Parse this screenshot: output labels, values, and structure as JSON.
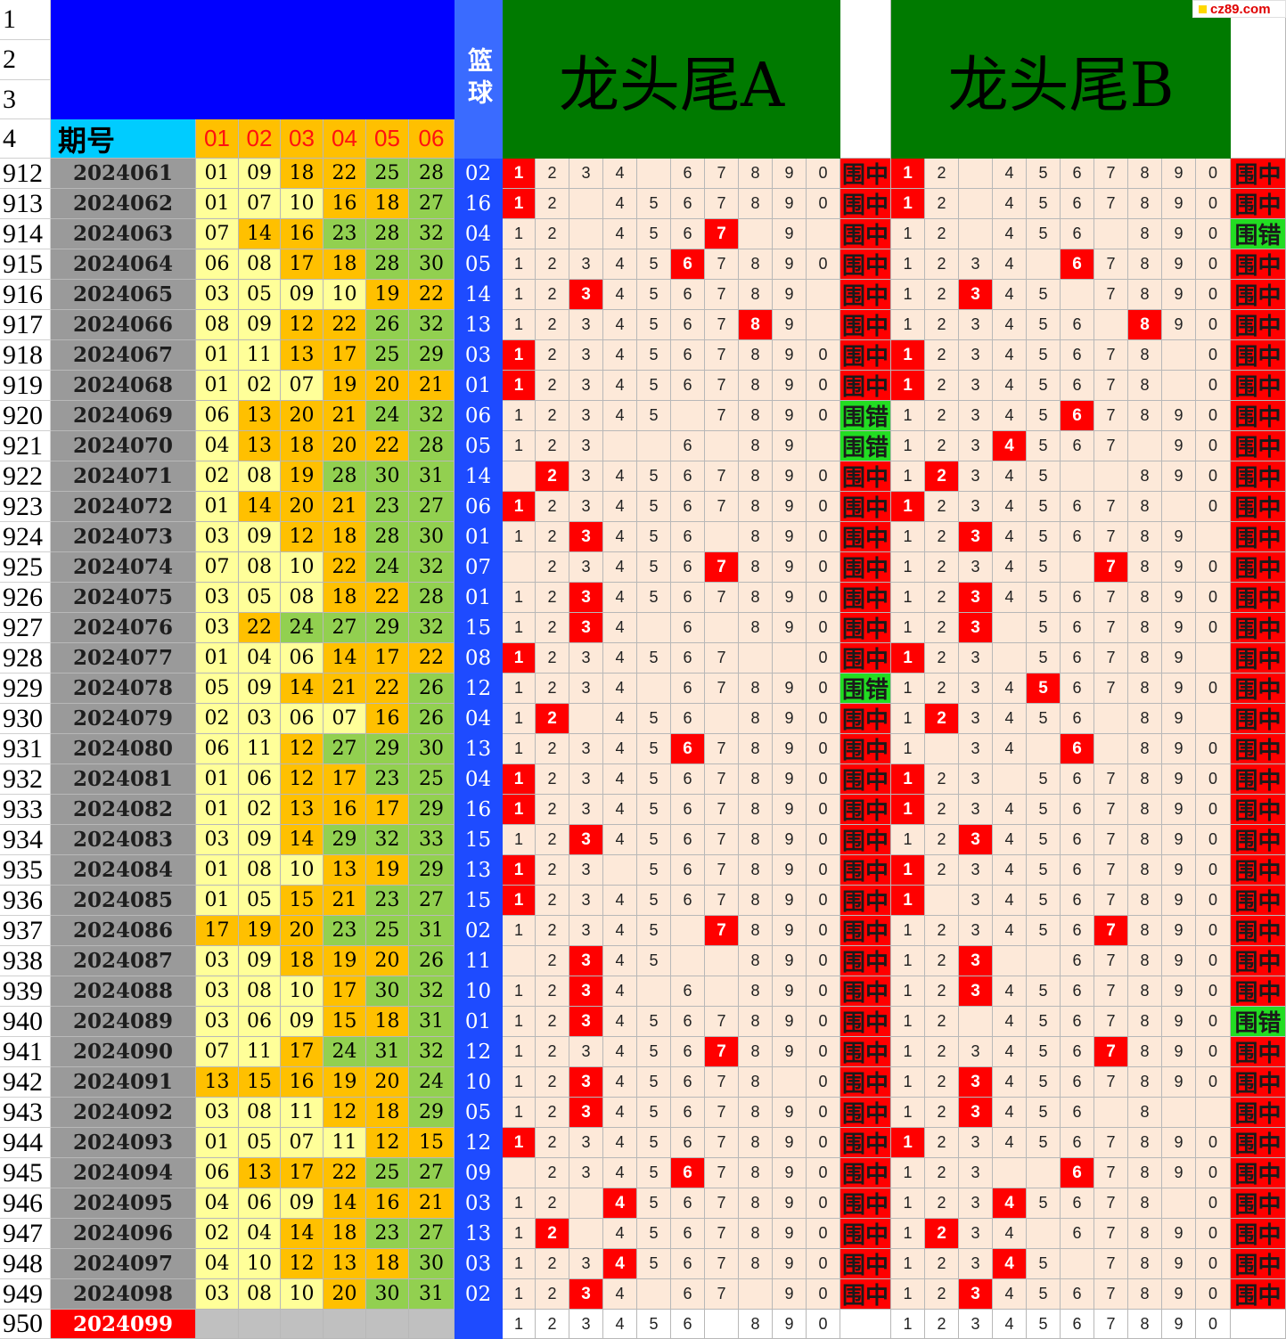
{
  "header": {
    "period_label": "期号",
    "ball_labels": [
      "01",
      "02",
      "03",
      "04",
      "05",
      "06"
    ],
    "blue_label": "篮球",
    "title_a": "龙头尾A",
    "title_b": "龙头尾B",
    "top_row_numbers": [
      "1",
      "2",
      "3",
      "4"
    ]
  },
  "watermark": "cz89.com",
  "colors": {
    "blue_block": "#0000ff",
    "blue_column": "#1e4bff",
    "header_green": "#007a00",
    "period_header": "#00ccff",
    "hit_red": "#ff0000",
    "miss_green": "#22dd22",
    "digit_bg": "#fde9d9",
    "ball_light": "#ffff99",
    "ball_mid": "#ffc000",
    "ball_dark": "#92d050"
  },
  "rows": [
    {
      "n": "912",
      "p": "2024061",
      "b": [
        "01",
        "09",
        "18",
        "22",
        "25",
        "28"
      ],
      "blue": "02",
      "a": "1234_67890",
      "ah": [
        0
      ],
      "ar": "围中",
      "bd": "12_4567890_",
      "bh": [
        0
      ],
      "br": "围中"
    },
    {
      "n": "913",
      "p": "2024062",
      "b": [
        "01",
        "07",
        "10",
        "16",
        "18",
        "27"
      ],
      "blue": "16",
      "a": "12_4567890",
      "ah": [
        0
      ],
      "ar": "围中",
      "bd": "12_4567890",
      "bh": [
        0
      ],
      "br": "围中"
    },
    {
      "n": "914",
      "p": "2024063",
      "b": [
        "07",
        "14",
        "16",
        "23",
        "28",
        "32"
      ],
      "blue": "04",
      "a": "12_4567_9_",
      "ah": [
        6
      ],
      "ar": "围中",
      "bd": "12_456_890",
      "bh": [],
      "br": "围错"
    },
    {
      "n": "915",
      "p": "2024064",
      "b": [
        "06",
        "08",
        "17",
        "18",
        "28",
        "30"
      ],
      "blue": "05",
      "a": "1234567890",
      "ah": [
        5
      ],
      "ar": "围中",
      "bd": "1234_67890",
      "bh": [
        5
      ],
      "br": "围中"
    },
    {
      "n": "916",
      "p": "2024065",
      "b": [
        "03",
        "05",
        "09",
        "10",
        "19",
        "22"
      ],
      "blue": "14",
      "a": "123456789_",
      "ah": [
        2
      ],
      "ar": "围中",
      "bd": "12345_7890",
      "bh": [
        2
      ],
      "br": "围中"
    },
    {
      "n": "917",
      "p": "2024066",
      "b": [
        "08",
        "09",
        "12",
        "22",
        "26",
        "32"
      ],
      "blue": "13",
      "a": "123456789_",
      "ah": [
        7
      ],
      "ar": "围中",
      "bd": "123456_890",
      "bh": [
        7
      ],
      "br": "围中"
    },
    {
      "n": "918",
      "p": "2024067",
      "b": [
        "01",
        "11",
        "13",
        "17",
        "25",
        "29"
      ],
      "blue": "03",
      "a": "1234567890",
      "ah": [
        0
      ],
      "ar": "围中",
      "bd": "12345678_0",
      "bh": [
        0
      ],
      "br": "围中"
    },
    {
      "n": "919",
      "p": "2024068",
      "b": [
        "01",
        "02",
        "07",
        "19",
        "20",
        "21"
      ],
      "blue": "01",
      "a": "1234567890",
      "ah": [
        0
      ],
      "ar": "围中",
      "bd": "12345678_0",
      "bh": [
        0
      ],
      "br": "围中"
    },
    {
      "n": "920",
      "p": "2024069",
      "b": [
        "06",
        "13",
        "20",
        "21",
        "24",
        "32"
      ],
      "blue": "06",
      "a": "12345_7890",
      "ah": [],
      "ar": "围错",
      "bd": "1234567890",
      "bh": [
        5
      ],
      "br": "围中"
    },
    {
      "n": "921",
      "p": "2024070",
      "b": [
        "04",
        "13",
        "18",
        "20",
        "22",
        "28"
      ],
      "blue": "05",
      "a": "123__6_89_",
      "ah": [],
      "ar": "围错",
      "bd": "1234567_90",
      "bh": [
        3
      ],
      "br": "围中"
    },
    {
      "n": "922",
      "p": "2024071",
      "b": [
        "02",
        "08",
        "19",
        "28",
        "30",
        "31"
      ],
      "blue": "14",
      "a": "_234567890",
      "ah": [
        1
      ],
      "ar": "围中",
      "bd": "12345__890",
      "bh": [
        1
      ],
      "br": "围中"
    },
    {
      "n": "923",
      "p": "2024072",
      "b": [
        "01",
        "14",
        "20",
        "21",
        "23",
        "27"
      ],
      "blue": "06",
      "a": "1234567890",
      "ah": [
        0
      ],
      "ar": "围中",
      "bd": "12345678_0",
      "bh": [
        0
      ],
      "br": "围中"
    },
    {
      "n": "924",
      "p": "2024073",
      "b": [
        "03",
        "09",
        "12",
        "18",
        "28",
        "30"
      ],
      "blue": "01",
      "a": "123456_890",
      "ah": [
        2
      ],
      "ar": "围中",
      "bd": "123456789_",
      "bh": [
        2
      ],
      "br": "围中"
    },
    {
      "n": "925",
      "p": "2024074",
      "b": [
        "07",
        "08",
        "10",
        "22",
        "24",
        "32"
      ],
      "blue": "07",
      "a": "_234567890",
      "ah": [
        6
      ],
      "ar": "围中",
      "bd": "12345_7890",
      "bh": [
        6
      ],
      "br": "围中"
    },
    {
      "n": "926",
      "p": "2024075",
      "b": [
        "03",
        "05",
        "08",
        "18",
        "22",
        "28"
      ],
      "blue": "01",
      "a": "1234567890",
      "ah": [
        2
      ],
      "ar": "围中",
      "bd": "1234567890",
      "bh": [
        2
      ],
      "br": "围中"
    },
    {
      "n": "927",
      "p": "2024076",
      "b": [
        "03",
        "22",
        "24",
        "27",
        "29",
        "32"
      ],
      "blue": "15",
      "a": "1234_6_890",
      "ah": [
        2
      ],
      "ar": "围中",
      "bd": "123_567890",
      "bh": [
        2
      ],
      "br": "围中"
    },
    {
      "n": "928",
      "p": "2024077",
      "b": [
        "01",
        "04",
        "06",
        "14",
        "17",
        "22"
      ],
      "blue": "08",
      "a": "1234567__0",
      "ah": [
        0
      ],
      "ar": "围中",
      "bd": "123_56789_",
      "bh": [
        0
      ],
      "br": "围中"
    },
    {
      "n": "929",
      "p": "2024078",
      "b": [
        "05",
        "09",
        "14",
        "21",
        "22",
        "26"
      ],
      "blue": "12",
      "a": "1234_67890",
      "ah": [],
      "ar": "围错",
      "bd": "1234567890",
      "bh": [
        4
      ],
      "br": "围中"
    },
    {
      "n": "930",
      "p": "2024079",
      "b": [
        "02",
        "03",
        "06",
        "07",
        "16",
        "26"
      ],
      "blue": "04",
      "a": "12_456_890",
      "ah": [
        1
      ],
      "ar": "围中",
      "bd": "123456_89_",
      "bh": [
        1
      ],
      "br": "围中"
    },
    {
      "n": "931",
      "p": "2024080",
      "b": [
        "06",
        "11",
        "12",
        "27",
        "29",
        "30"
      ],
      "blue": "13",
      "a": "1234567890",
      "ah": [
        5
      ],
      "ar": "围中",
      "bd": "1_34_6_890",
      "bh": [
        5
      ],
      "br": "围中"
    },
    {
      "n": "932",
      "p": "2024081",
      "b": [
        "01",
        "06",
        "12",
        "17",
        "23",
        "25"
      ],
      "blue": "04",
      "a": "1234567890",
      "ah": [
        0
      ],
      "ar": "围中",
      "bd": "123_567890",
      "bh": [
        0
      ],
      "br": "围中"
    },
    {
      "n": "933",
      "p": "2024082",
      "b": [
        "01",
        "02",
        "13",
        "16",
        "17",
        "29"
      ],
      "blue": "16",
      "a": "1234567890",
      "ah": [
        0
      ],
      "ar": "围中",
      "bd": "1234567890",
      "bh": [
        0
      ],
      "br": "围中"
    },
    {
      "n": "934",
      "p": "2024083",
      "b": [
        "03",
        "09",
        "14",
        "29",
        "32",
        "33"
      ],
      "blue": "15",
      "a": "1234567890",
      "ah": [
        2
      ],
      "ar": "围中",
      "bd": "1234567890",
      "bh": [
        2
      ],
      "br": "围中"
    },
    {
      "n": "935",
      "p": "2024084",
      "b": [
        "01",
        "08",
        "10",
        "13",
        "19",
        "29"
      ],
      "blue": "13",
      "a": "123_567890",
      "ah": [
        0
      ],
      "ar": "围中",
      "bd": "1234567890",
      "bh": [
        0
      ],
      "br": "围中"
    },
    {
      "n": "936",
      "p": "2024085",
      "b": [
        "01",
        "05",
        "15",
        "21",
        "23",
        "27"
      ],
      "blue": "15",
      "a": "1234567890",
      "ah": [
        0
      ],
      "ar": "围中",
      "bd": "1_34567890",
      "bh": [
        0
      ],
      "br": "围中"
    },
    {
      "n": "937",
      "p": "2024086",
      "b": [
        "17",
        "19",
        "20",
        "23",
        "25",
        "31"
      ],
      "blue": "02",
      "a": "12345_7890",
      "ah": [
        6
      ],
      "ar": "围中",
      "bd": "1234567890",
      "bh": [
        6
      ],
      "br": "围中"
    },
    {
      "n": "938",
      "p": "2024087",
      "b": [
        "03",
        "09",
        "18",
        "19",
        "20",
        "26"
      ],
      "blue": "11",
      "a": "_2345__890",
      "ah": [
        2
      ],
      "ar": "围中",
      "bd": "123__67890",
      "bh": [
        2
      ],
      "br": "围中"
    },
    {
      "n": "939",
      "p": "2024088",
      "b": [
        "03",
        "08",
        "10",
        "17",
        "30",
        "32"
      ],
      "blue": "10",
      "a": "1234_6_890",
      "ah": [
        2
      ],
      "ar": "围中",
      "bd": "1234567890",
      "bh": [
        2
      ],
      "br": "围中"
    },
    {
      "n": "940",
      "p": "2024089",
      "b": [
        "03",
        "06",
        "09",
        "15",
        "18",
        "31"
      ],
      "blue": "01",
      "a": "1234567890",
      "ah": [
        2
      ],
      "ar": "围中",
      "bd": "12_4567890",
      "bh": [],
      "br": "围错"
    },
    {
      "n": "941",
      "p": "2024090",
      "b": [
        "07",
        "11",
        "17",
        "24",
        "31",
        "32"
      ],
      "blue": "12",
      "a": "1234567890",
      "ah": [
        6
      ],
      "ar": "围中",
      "bd": "1234567890",
      "bh": [
        6
      ],
      "br": "围中"
    },
    {
      "n": "942",
      "p": "2024091",
      "b": [
        "13",
        "15",
        "16",
        "19",
        "20",
        "24"
      ],
      "blue": "10",
      "a": "12345678_0",
      "ah": [
        2
      ],
      "ar": "围中",
      "bd": "1234567890",
      "bh": [
        2
      ],
      "br": "围中"
    },
    {
      "n": "943",
      "p": "2024092",
      "b": [
        "03",
        "08",
        "11",
        "12",
        "18",
        "29"
      ],
      "blue": "05",
      "a": "1234567890",
      "ah": [
        2
      ],
      "ar": "围中",
      "bd": "123456_8__",
      "bh": [
        2
      ],
      "br": "围中"
    },
    {
      "n": "944",
      "p": "2024093",
      "b": [
        "01",
        "05",
        "07",
        "11",
        "12",
        "15"
      ],
      "blue": "12",
      "a": "1234567890",
      "ah": [
        0
      ],
      "ar": "围中",
      "bd": "1234567890",
      "bh": [
        0
      ],
      "br": "围中"
    },
    {
      "n": "945",
      "p": "2024094",
      "b": [
        "06",
        "13",
        "17",
        "22",
        "25",
        "27"
      ],
      "blue": "09",
      "a": "_234567890",
      "ah": [
        5
      ],
      "ar": "围中",
      "bd": "123__67890",
      "bh": [
        5
      ],
      "br": "围中"
    },
    {
      "n": "946",
      "p": "2024095",
      "b": [
        "04",
        "06",
        "09",
        "14",
        "16",
        "21"
      ],
      "blue": "03",
      "a": "12_4567890",
      "ah": [
        3
      ],
      "ar": "围中",
      "bd": "12345678_0",
      "bh": [
        3
      ],
      "br": "围中"
    },
    {
      "n": "947",
      "p": "2024096",
      "b": [
        "02",
        "04",
        "14",
        "18",
        "23",
        "27"
      ],
      "blue": "13",
      "a": "12_4567890",
      "ah": [
        1
      ],
      "ar": "围中",
      "bd": "1234_67890",
      "bh": [
        1
      ],
      "br": "围中"
    },
    {
      "n": "948",
      "p": "2024097",
      "b": [
        "04",
        "10",
        "12",
        "13",
        "18",
        "30"
      ],
      "blue": "03",
      "a": "1234567890",
      "ah": [
        3
      ],
      "ar": "围中",
      "bd": "12345_7890",
      "bh": [
        3
      ],
      "br": "围中"
    },
    {
      "n": "949",
      "p": "2024098",
      "b": [
        "03",
        "08",
        "10",
        "20",
        "30",
        "31"
      ],
      "blue": "02",
      "a": "1234_67_90",
      "ah": [
        2
      ],
      "ar": "围中",
      "bd": "1234567890",
      "bh": [
        2
      ],
      "br": "围中"
    },
    {
      "n": "950",
      "p": "2024099",
      "b": [
        "",
        "",
        "",
        "",
        "",
        ""
      ],
      "blue": "",
      "a": "123456_890",
      "ah": [],
      "ar": "",
      "bd": "1234567890",
      "bh": [],
      "br": "",
      "current": true
    }
  ]
}
